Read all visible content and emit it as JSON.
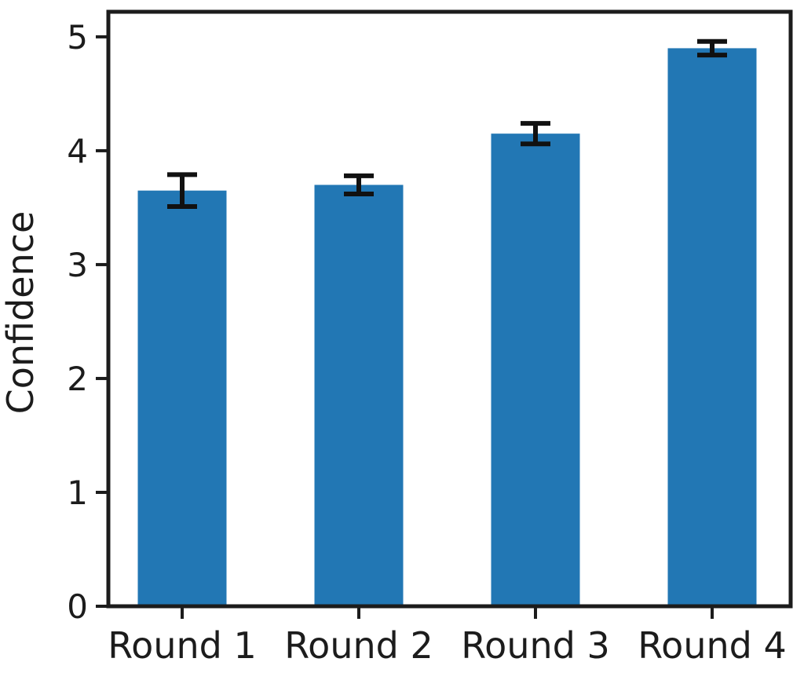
{
  "chart_data": {
    "type": "bar",
    "title": "",
    "xlabel": "",
    "ylabel": "Confidence",
    "categories": [
      "Round 1",
      "Round 2",
      "Round 3",
      "Round 4"
    ],
    "values": [
      3.65,
      3.7,
      4.15,
      4.9
    ],
    "error_bars": [
      0.14,
      0.08,
      0.09,
      0.06
    ],
    "ytick_labels": [
      "0",
      "1",
      "2",
      "3",
      "4",
      "5"
    ],
    "ytick_values": [
      0,
      1,
      2,
      3,
      4,
      5
    ],
    "ylim": [
      0,
      5.22
    ],
    "grid": false,
    "legend": null,
    "bar_color": "#2277b4",
    "error_color": "#111111",
    "axis_color": "#1c1c1c",
    "text_color": "#1c1c1c"
  }
}
